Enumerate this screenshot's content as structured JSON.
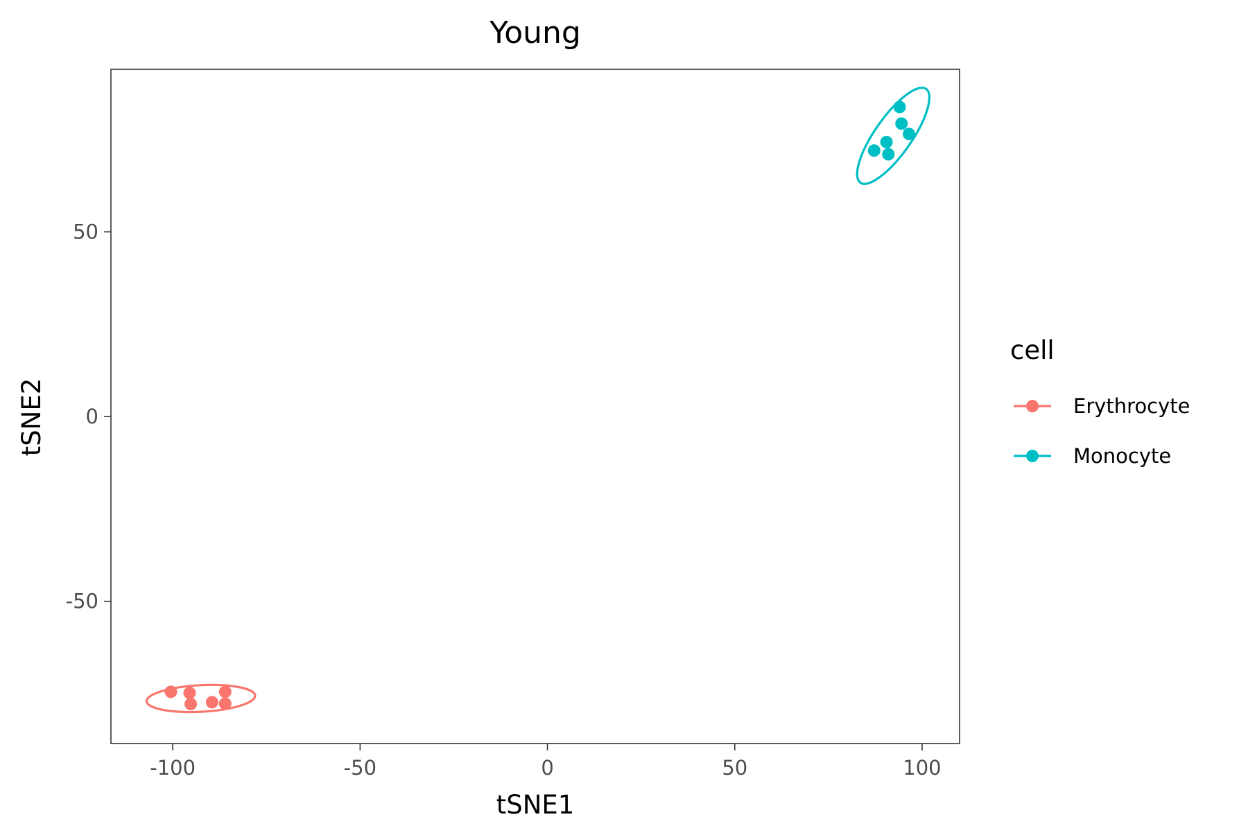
{
  "chart_data": {
    "type": "scatter",
    "title": "Young",
    "xlabel": "tSNE1",
    "ylabel": "tSNE2",
    "xlim": [
      -116.5,
      110
    ],
    "ylim": [
      -88.5,
      94
    ],
    "x_ticks": [
      -100,
      -50,
      0,
      50,
      100
    ],
    "x_tick_labels": [
      "-100",
      "-50",
      "0",
      "50",
      "100"
    ],
    "y_ticks": [
      -50,
      0,
      50
    ],
    "y_tick_labels": [
      "-50",
      "0",
      "50"
    ],
    "grid": false,
    "legend": {
      "title": "cell",
      "position": "right"
    },
    "series": [
      {
        "name": "Erythrocyte",
        "color": "#F8766D",
        "points": [
          {
            "x": -100.5,
            "y": -74.5
          },
          {
            "x": -95.5,
            "y": -74.8
          },
          {
            "x": -95.2,
            "y": -77.8
          },
          {
            "x": -89.5,
            "y": -77.3
          },
          {
            "x": -86.0,
            "y": -74.5
          },
          {
            "x": -86.0,
            "y": -77.7
          }
        ],
        "ellipse": {
          "cx": -92.5,
          "cy": -76.3,
          "rx": 14.5,
          "ry": 3.6,
          "angle_deg": -3
        }
      },
      {
        "name": "Monocyte",
        "color": "#00BFC4",
        "points": [
          {
            "x": 94.0,
            "y": 83.8
          },
          {
            "x": 94.5,
            "y": 79.3
          },
          {
            "x": 96.5,
            "y": 76.5
          },
          {
            "x": 90.5,
            "y": 74.3
          },
          {
            "x": 87.2,
            "y": 72.0
          },
          {
            "x": 91.0,
            "y": 71.0
          }
        ],
        "ellipse": {
          "cx": 92.3,
          "cy": 76.0,
          "rx": 4.9,
          "ry": 15.5,
          "angle_deg": 35
        }
      }
    ]
  }
}
